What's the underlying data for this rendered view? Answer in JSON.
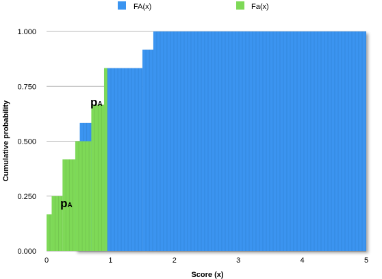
{
  "chart_data": {
    "type": "bar",
    "xlabel": "Score (x)",
    "ylabel": "Cumulative probability",
    "xlim": [
      0,
      5
    ],
    "ylim": [
      0,
      1
    ],
    "x_ticks": [
      "0",
      "1",
      "2",
      "3",
      "4",
      "5"
    ],
    "y_ticks": [
      "0.000",
      "0.250",
      "0.500",
      "0.750",
      "1.000"
    ],
    "grid": true,
    "legend_position": "top",
    "series": [
      {
        "name": "FA(x)",
        "color": "#3a94f0",
        "points": [
          {
            "x_start": 0.45,
            "x_end": 0.52,
            "y": 0.5
          },
          {
            "x_start": 0.52,
            "x_end": 0.9,
            "y": 0.583
          },
          {
            "x_start": 0.9,
            "x_end": 1.5,
            "y": 0.833
          },
          {
            "x_start": 1.5,
            "x_end": 1.67,
            "y": 0.917
          },
          {
            "x_start": 1.67,
            "x_end": 5.0,
            "y": 1.0
          }
        ]
      },
      {
        "name": "Fa(x)",
        "color": "#7ed957",
        "points": [
          {
            "x_start": 0.0,
            "x_end": 0.08,
            "y": 0.167
          },
          {
            "x_start": 0.08,
            "x_end": 0.25,
            "y": 0.25
          },
          {
            "x_start": 0.25,
            "x_end": 0.45,
            "y": 0.417
          },
          {
            "x_start": 0.45,
            "x_end": 0.7,
            "y": 0.5
          },
          {
            "x_start": 0.7,
            "x_end": 0.9,
            "y": 0.667
          },
          {
            "x_start": 0.9,
            "x_end": 0.95,
            "y": 0.833
          }
        ]
      }
    ],
    "annotations": [
      {
        "main": "p",
        "sub": "A",
        "x": 0.28,
        "y": 0.2
      },
      {
        "main": "p",
        "sub": "A",
        "x": 0.75,
        "y": 0.66
      }
    ]
  }
}
